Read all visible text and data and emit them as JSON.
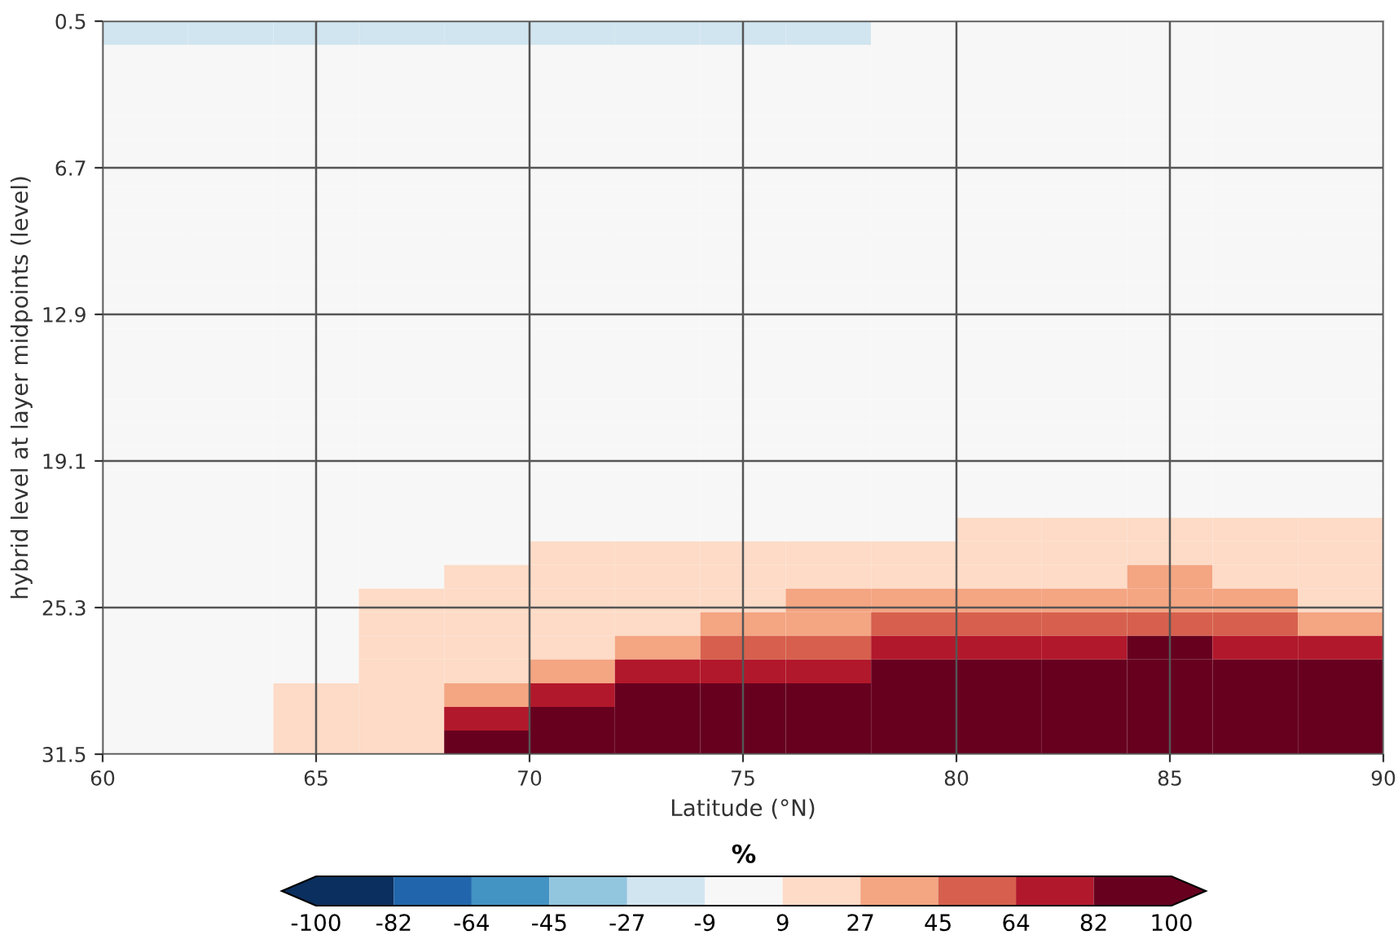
{
  "chart_data": {
    "type": "heatmap",
    "xlabel": "Latitude (°N)",
    "ylabel": "hybrid level at layer midpoints (level)",
    "clabel": "%",
    "x": [
      61,
      63,
      65,
      67,
      69,
      71,
      73,
      75,
      77,
      79,
      81,
      83,
      85,
      87,
      89
    ],
    "y": [
      1,
      2,
      3,
      4,
      5,
      6,
      7,
      8,
      9,
      10,
      11,
      12,
      13,
      14,
      15,
      16,
      17,
      18,
      19,
      20,
      21,
      22,
      23,
      24,
      25,
      26,
      27,
      28,
      29,
      30,
      31
    ],
    "xlim": [
      60,
      90
    ],
    "xticks": [
      60,
      65,
      70,
      75,
      80,
      85,
      90
    ],
    "ylim": [
      31.5,
      0.5
    ],
    "yticks": [
      0.5,
      6.7,
      12.9,
      19.1,
      25.3,
      31.5
    ],
    "clim": [
      -100,
      100
    ],
    "cticks": [
      -100,
      -82,
      -64,
      -45,
      -27,
      -9,
      9,
      27,
      45,
      64,
      82,
      100
    ],
    "colors": [
      "#0b2f5e",
      "#2166ac",
      "#4393c3",
      "#92c5de",
      "#d1e5f0",
      "#f7f7f7",
      "#fddbc7",
      "#f4a582",
      "#d6604d",
      "#b2182b",
      "#67001f"
    ],
    "grid": true,
    "cells": [
      [
        -18,
        -18,
        -18,
        -18,
        -18,
        -18,
        -18,
        -18,
        -18,
        0,
        0,
        0,
        0,
        0,
        0
      ],
      [
        0,
        0,
        0,
        0,
        0,
        0,
        0,
        0,
        0,
        0,
        0,
        0,
        0,
        0,
        0
      ],
      [
        0,
        0,
        0,
        0,
        0,
        0,
        0,
        0,
        0,
        0,
        0,
        0,
        0,
        0,
        0
      ],
      [
        0,
        0,
        0,
        0,
        0,
        0,
        0,
        0,
        0,
        0,
        0,
        0,
        0,
        0,
        0
      ],
      [
        0,
        0,
        0,
        0,
        0,
        0,
        0,
        0,
        0,
        0,
        0,
        0,
        0,
        0,
        0
      ],
      [
        0,
        0,
        0,
        0,
        0,
        0,
        0,
        0,
        0,
        0,
        0,
        0,
        0,
        0,
        0
      ],
      [
        0,
        0,
        0,
        0,
        0,
        0,
        0,
        0,
        0,
        0,
        0,
        0,
        0,
        0,
        0
      ],
      [
        0,
        0,
        0,
        0,
        0,
        0,
        0,
        0,
        0,
        0,
        0,
        0,
        0,
        0,
        0
      ],
      [
        0,
        0,
        0,
        0,
        0,
        0,
        0,
        0,
        0,
        0,
        0,
        0,
        0,
        0,
        0
      ],
      [
        0,
        0,
        0,
        0,
        0,
        0,
        0,
        0,
        0,
        0,
        0,
        0,
        0,
        0,
        0
      ],
      [
        0,
        0,
        0,
        0,
        0,
        0,
        0,
        0,
        0,
        0,
        0,
        0,
        0,
        0,
        0
      ],
      [
        0,
        0,
        0,
        0,
        0,
        0,
        0,
        0,
        0,
        0,
        0,
        0,
        0,
        0,
        0
      ],
      [
        0,
        0,
        0,
        0,
        0,
        0,
        0,
        0,
        0,
        0,
        0,
        0,
        0,
        0,
        0
      ],
      [
        0,
        0,
        0,
        0,
        0,
        0,
        0,
        0,
        0,
        0,
        0,
        0,
        0,
        0,
        0
      ],
      [
        0,
        0,
        0,
        0,
        0,
        0,
        0,
        0,
        0,
        0,
        0,
        0,
        0,
        0,
        0
      ],
      [
        0,
        0,
        0,
        0,
        0,
        0,
        0,
        0,
        0,
        0,
        0,
        0,
        0,
        0,
        0
      ],
      [
        0,
        0,
        0,
        0,
        0,
        0,
        0,
        0,
        0,
        0,
        0,
        0,
        0,
        0,
        0
      ],
      [
        0,
        0,
        0,
        0,
        0,
        0,
        0,
        0,
        0,
        0,
        0,
        0,
        0,
        0,
        0
      ],
      [
        0,
        0,
        0,
        0,
        0,
        0,
        0,
        0,
        0,
        0,
        0,
        0,
        0,
        0,
        0
      ],
      [
        0,
        0,
        0,
        0,
        0,
        0,
        0,
        0,
        0,
        0,
        0,
        0,
        0,
        0,
        0
      ],
      [
        0,
        0,
        0,
        0,
        0,
        0,
        0,
        0,
        0,
        0,
        0,
        0,
        0,
        0,
        0
      ],
      [
        0,
        0,
        0,
        0,
        0,
        0,
        0,
        0,
        0,
        0,
        18,
        18,
        18,
        18,
        18
      ],
      [
        0,
        0,
        0,
        0,
        0,
        18,
        18,
        18,
        18,
        18,
        18,
        18,
        18,
        18,
        18
      ],
      [
        0,
        0,
        0,
        0,
        18,
        18,
        18,
        18,
        18,
        18,
        18,
        18,
        36,
        18,
        18
      ],
      [
        0,
        0,
        0,
        18,
        18,
        18,
        18,
        18,
        36,
        36,
        36,
        36,
        36,
        36,
        18
      ],
      [
        0,
        0,
        0,
        18,
        18,
        18,
        18,
        36,
        36,
        55,
        55,
        55,
        55,
        55,
        36
      ],
      [
        0,
        0,
        0,
        18,
        18,
        18,
        36,
        55,
        55,
        73,
        73,
        73,
        91,
        73,
        73
      ],
      [
        0,
        0,
        0,
        18,
        18,
        36,
        73,
        73,
        73,
        91,
        91,
        91,
        91,
        91,
        91
      ],
      [
        0,
        0,
        18,
        18,
        36,
        73,
        91,
        91,
        91,
        91,
        91,
        91,
        91,
        91,
        91
      ],
      [
        0,
        0,
        18,
        18,
        73,
        91,
        91,
        91,
        91,
        91,
        91,
        91,
        91,
        91,
        91
      ],
      [
        0,
        0,
        18,
        18,
        91,
        91,
        91,
        91,
        91,
        91,
        91,
        91,
        91,
        91,
        91
      ]
    ]
  }
}
